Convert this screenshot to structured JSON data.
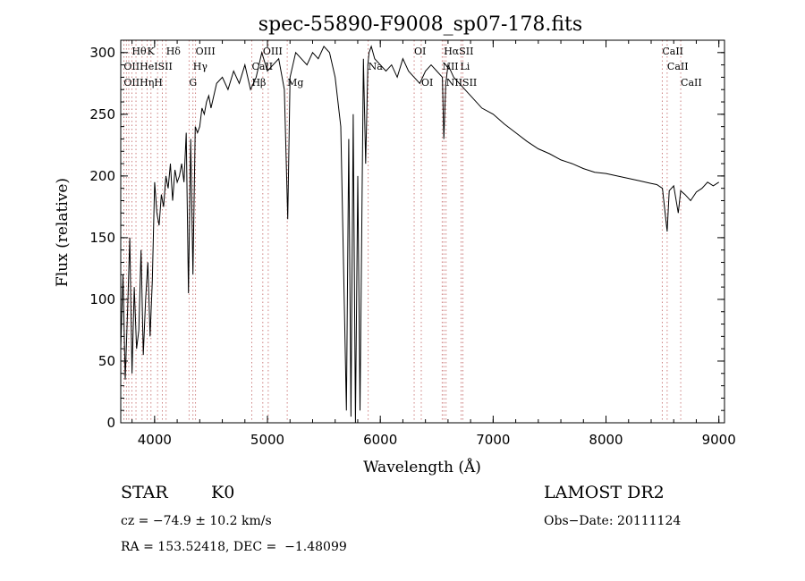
{
  "chart_data": {
    "type": "line",
    "title": "spec-55890-F9008_sp07-178.fits",
    "xlabel": "Wavelength (Å)",
    "ylabel": "Flux (relative)",
    "xlim": [
      3700,
      9050
    ],
    "ylim": [
      0,
      310
    ],
    "xticks": [
      4000,
      5000,
      6000,
      7000,
      8000,
      9000
    ],
    "yticks": [
      0,
      50,
      100,
      150,
      200,
      250,
      300
    ],
    "grid": false,
    "series": [
      {
        "name": "",
        "x": [
          3700,
          3720,
          3740,
          3760,
          3780,
          3800,
          3820,
          3840,
          3860,
          3880,
          3900,
          3920,
          3940,
          3960,
          3980,
          4000,
          4020,
          4040,
          4060,
          4080,
          4100,
          4120,
          4140,
          4160,
          4180,
          4200,
          4220,
          4240,
          4260,
          4280,
          4300,
          4320,
          4340,
          4360,
          4380,
          4400,
          4420,
          4440,
          4460,
          4480,
          4500,
          4550,
          4600,
          4650,
          4700,
          4750,
          4800,
          4850,
          4900,
          4950,
          5000,
          5050,
          5100,
          5150,
          5180,
          5200,
          5250,
          5300,
          5350,
          5400,
          5450,
          5500,
          5550,
          5600,
          5650,
          5700,
          5720,
          5740,
          5760,
          5780,
          5800,
          5820,
          5850,
          5870,
          5890,
          5900,
          5920,
          5950,
          6000,
          6050,
          6100,
          6150,
          6200,
          6250,
          6300,
          6350,
          6400,
          6450,
          6500,
          6550,
          6563,
          6580,
          6600,
          6650,
          6700,
          6750,
          6800,
          6900,
          7000,
          7100,
          7200,
          7300,
          7400,
          7500,
          7600,
          7700,
          7800,
          7900,
          8000,
          8100,
          8200,
          8300,
          8400,
          8450,
          8500,
          8542,
          8560,
          8600,
          8640,
          8662,
          8700,
          8750,
          8800,
          8850,
          8900,
          8950,
          9000
        ],
        "y": [
          60,
          120,
          35,
          90,
          150,
          40,
          110,
          60,
          75,
          140,
          55,
          100,
          130,
          70,
          115,
          195,
          170,
          160,
          185,
          175,
          200,
          190,
          210,
          180,
          205,
          195,
          200,
          210,
          195,
          235,
          105,
          230,
          120,
          240,
          235,
          240,
          255,
          250,
          260,
          265,
          255,
          275,
          280,
          270,
          285,
          275,
          290,
          270,
          280,
          300,
          285,
          290,
          295,
          270,
          165,
          280,
          300,
          295,
          290,
          300,
          295,
          305,
          300,
          280,
          240,
          10,
          230,
          5,
          250,
          0,
          200,
          10,
          295,
          210,
          290,
          300,
          305,
          295,
          290,
          285,
          290,
          280,
          295,
          285,
          280,
          275,
          285,
          290,
          285,
          280,
          230,
          275,
          290,
          280,
          275,
          270,
          265,
          255,
          250,
          242,
          235,
          228,
          222,
          218,
          213,
          210,
          206,
          203,
          202,
          200,
          198,
          196,
          194,
          193,
          190,
          155,
          188,
          192,
          170,
          188,
          185,
          180,
          187,
          190,
          195,
          192,
          195
        ]
      }
    ],
    "lines": [
      {
        "label": "Hθ",
        "x": 3798,
        "row": 0
      },
      {
        "label": "K",
        "x": 3934,
        "row": 0
      },
      {
        "label": "Hδ",
        "x": 4102,
        "row": 0
      },
      {
        "label": "OIII",
        "x": 4363,
        "row": 0
      },
      {
        "label": "OIII",
        "x": 4959,
        "row": 0
      },
      {
        "label": "OI",
        "x": 6300,
        "row": 0
      },
      {
        "label": "HαSII",
        "x": 6563,
        "row": 0
      },
      {
        "label": "CaII",
        "x": 8498,
        "row": 0
      },
      {
        "label": "OIIHeISII",
        "x": 3727,
        "row": 1
      },
      {
        "label": "Hγ",
        "x": 4340,
        "row": 1
      },
      {
        "label": "CaII",
        "x": 4861,
        "row": 1
      },
      {
        "label": "Na",
        "x": 5893,
        "row": 1
      },
      {
        "label": "NII",
        "x": 6548,
        "row": 1
      },
      {
        "label": "Li",
        "x": 6708,
        "row": 1
      },
      {
        "label": "CaII",
        "x": 8542,
        "row": 1
      },
      {
        "label": "OIIHηH",
        "x": 3727,
        "row": 2
      },
      {
        "label": "G",
        "x": 4305,
        "row": 2
      },
      {
        "label": "Hβ",
        "x": 4861,
        "row": 2
      },
      {
        "label": "Mg",
        "x": 5175,
        "row": 2
      },
      {
        "label": "OI",
        "x": 6363,
        "row": 2
      },
      {
        "label": "NIISII",
        "x": 6583,
        "row": 2
      },
      {
        "label": "CaII",
        "x": 8662,
        "row": 2
      }
    ],
    "line_marks_x": [
      3727,
      3750,
      3771,
      3798,
      3835,
      3889,
      3934,
      3968,
      4026,
      4068,
      4102,
      4305,
      4340,
      4363,
      4861,
      4959,
      5007,
      5175,
      5893,
      6300,
      6363,
      6548,
      6563,
      6583,
      6716,
      6731,
      8498,
      8542,
      8662
    ]
  },
  "info": {
    "object_class": "STAR",
    "subclass": "K0",
    "survey": "LAMOST DR2",
    "redshift": "cz = −74.9 ± 10.2 km/s",
    "obs_date": "Obs−Date: 20111124",
    "coords": "RA = 153.52418, DEC =  −1.48099"
  }
}
